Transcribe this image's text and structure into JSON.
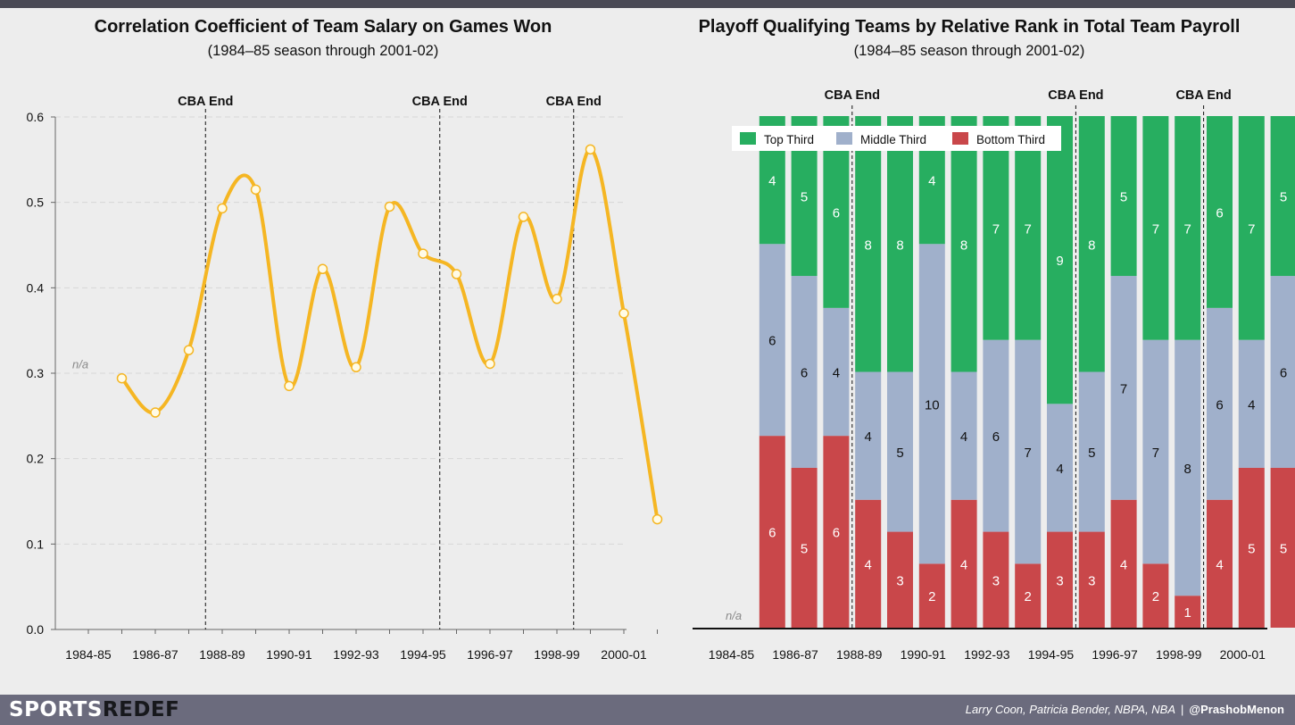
{
  "footer": {
    "brand_part1": "SPORTS",
    "brand_part2": "REDEF",
    "sources": "Larry Coon, Patricia Bender, NBPA, NBA",
    "separator": "|",
    "handle": "@PrashobMenon"
  },
  "colors": {
    "background": "#ededed",
    "line": "#f5b623",
    "top_third": "#27ae60",
    "middle_third": "#a0b0cb",
    "bottom_third": "#c9474a",
    "footer": "#6b6b7d"
  },
  "chart_data": [
    {
      "type": "line",
      "title": "Correlation Coefficient of Team Salary on Games Won",
      "subtitle": "(1984–85 season through 2001-02)",
      "na_label": "n/a",
      "x": [
        "1984-85",
        "1985-86",
        "1986-87",
        "1987-88",
        "1988-89",
        "1989-90",
        "1990-91",
        "1991-92",
        "1992-93",
        "1993-94",
        "1994-95",
        "1995-96",
        "1996-97",
        "1997-98",
        "1998-99",
        "1999-00",
        "2000-01",
        "2001-02"
      ],
      "x_tick_labels": [
        "1984-85",
        "1986-87",
        "1988-89",
        "1990-91",
        "1992-93",
        "1994-95",
        "1996-97",
        "1998-99",
        "2000-01"
      ],
      "values": [
        null,
        0.294,
        0.254,
        0.327,
        0.493,
        0.515,
        0.285,
        0.422,
        0.307,
        0.495,
        0.44,
        0.416,
        0.311,
        0.483,
        0.387,
        0.562,
        0.37,
        0.129
      ],
      "ylim": [
        0,
        0.6
      ],
      "yticks": [
        0,
        0.1,
        0.2,
        0.3,
        0.4,
        0.5,
        0.6
      ],
      "ytick_labels": [
        "0.0",
        "0.1",
        "0.2",
        "0.3",
        "0.4",
        "0.5",
        "0.6"
      ],
      "grid": "horizontal dashed",
      "markers": [
        {
          "label": "CBA End",
          "x": 3.5
        },
        {
          "label": "CBA End",
          "x": 10.5
        },
        {
          "label": "CBA End",
          "x": 14.5
        }
      ]
    },
    {
      "type": "bar",
      "stacked": true,
      "title": "Playoff Qualifying Teams by Relative Rank in Total Team Payroll",
      "subtitle": "(1984–85 season through 2001-02)",
      "na_label": "n/a",
      "categories": [
        "1984-85",
        "1985-86",
        "1986-87",
        "1987-88",
        "1988-89",
        "1989-90",
        "1990-91",
        "1991-92",
        "1992-93",
        "1993-94",
        "1994-95",
        "1995-96",
        "1996-97",
        "1997-98",
        "1998-99",
        "1999-00",
        "2000-01",
        "2001-02"
      ],
      "x_tick_labels": [
        "1984-85",
        "1986-87",
        "1988-89",
        "1990-91",
        "1992-93",
        "1994-95",
        "1996-97",
        "1998-99",
        "2000-01"
      ],
      "series": [
        {
          "name": "Bottom Third",
          "values": [
            null,
            6,
            5,
            6,
            4,
            3,
            2,
            4,
            3,
            2,
            3,
            3,
            4,
            2,
            1,
            4,
            5,
            5
          ]
        },
        {
          "name": "Middle Third",
          "values": [
            null,
            6,
            6,
            4,
            4,
            5,
            10,
            4,
            6,
            7,
            4,
            5,
            7,
            7,
            8,
            6,
            4,
            6
          ]
        },
        {
          "name": "Top Third",
          "values": [
            null,
            4,
            5,
            6,
            8,
            8,
            4,
            8,
            7,
            7,
            9,
            8,
            5,
            7,
            7,
            6,
            7,
            5
          ]
        }
      ],
      "legend": {
        "placement": "top-left",
        "order": [
          "Top Third",
          "Middle Third",
          "Bottom Third"
        ]
      },
      "markers": [
        {
          "label": "CBA End",
          "x": 3.5
        },
        {
          "label": "CBA End",
          "x": 10.5
        },
        {
          "label": "CBA End",
          "x": 14.5
        }
      ]
    }
  ]
}
